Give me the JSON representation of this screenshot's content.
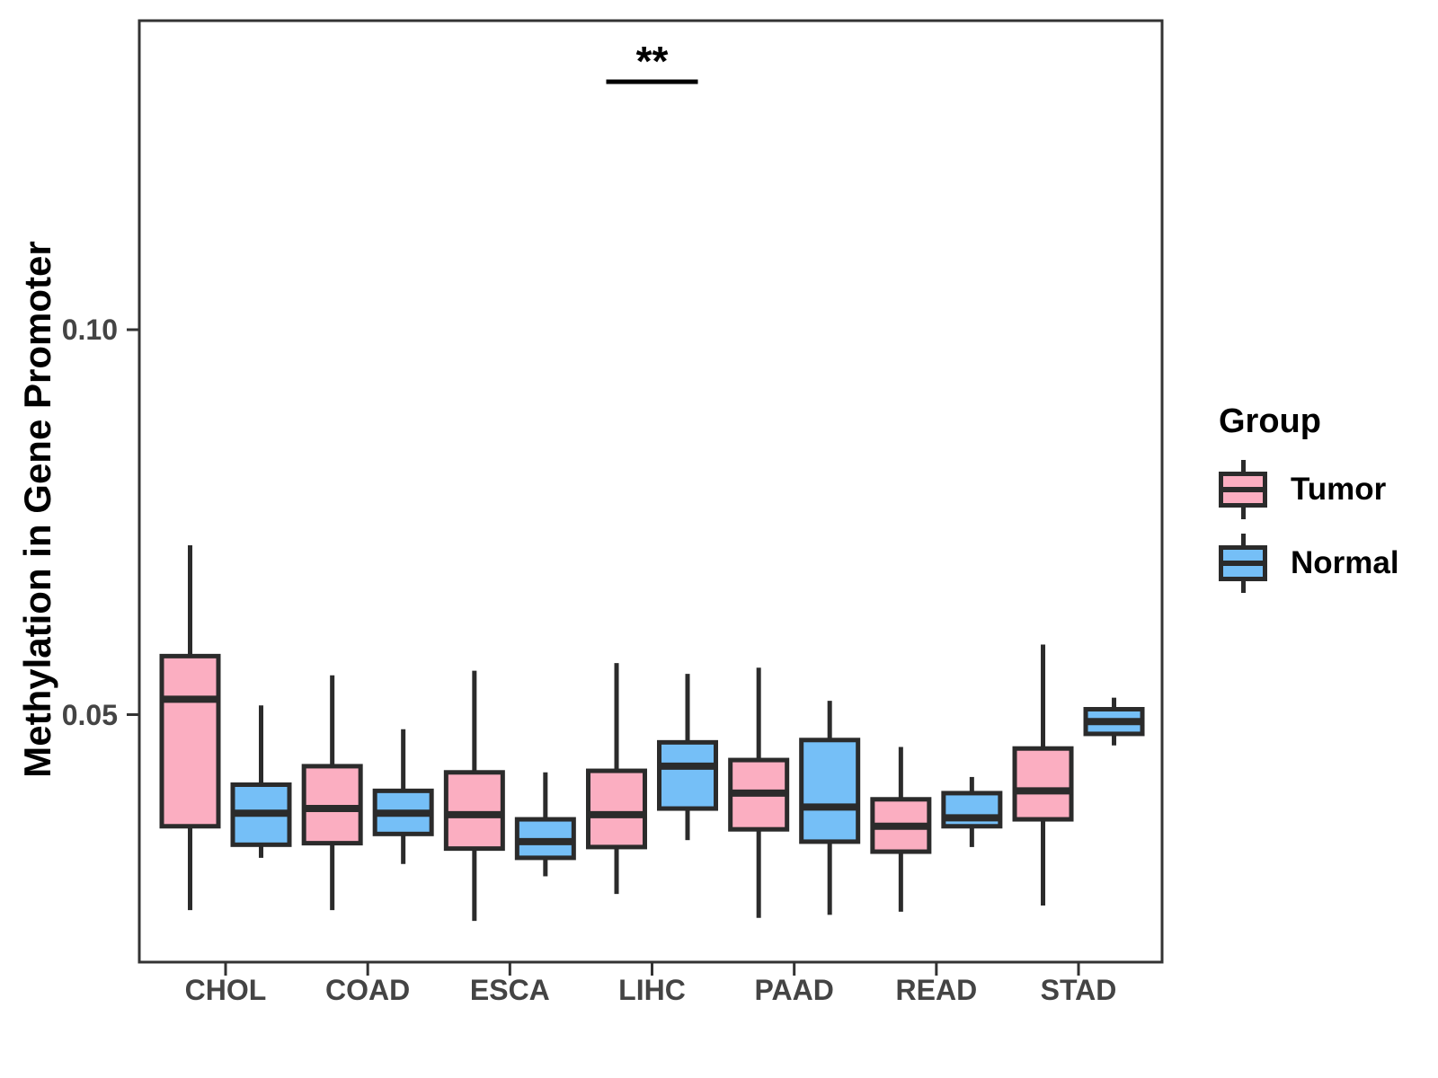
{
  "chart_data": {
    "type": "boxplot",
    "title": "",
    "xlabel": "",
    "ylabel": "Methylation in Gene Promoter",
    "categories": [
      "CHOL",
      "COAD",
      "ESCA",
      "LIHC",
      "PAAD",
      "READ",
      "STAD"
    ],
    "y_ticks": [
      {
        "value": 0.05,
        "label": "0.05"
      },
      {
        "value": 0.1,
        "label": "0.10"
      }
    ],
    "ylim": [
      0.018,
      0.14
    ],
    "grid": "off",
    "legend": {
      "title": "Group",
      "position": "right",
      "entries": [
        {
          "label": "Tumor",
          "color": "#FBAEC1"
        },
        {
          "label": "Normal",
          "color": "#75BFF7"
        }
      ]
    },
    "colors": {
      "tumor_fill": "#FBAEC1",
      "normal_fill": "#75BFF7",
      "box_border": "#2B2B2B",
      "axis": "#333333",
      "tick_label": "#444444",
      "significance": "#000000"
    },
    "series": [
      {
        "name": "Tumor",
        "color": "#FBAEC1",
        "boxes": [
          {
            "category": "CHOL",
            "low": 0.0246,
            "q1": 0.0355,
            "median": 0.052,
            "q3": 0.0576,
            "high": 0.072
          },
          {
            "category": "COAD",
            "low": 0.0246,
            "q1": 0.0333,
            "median": 0.0378,
            "q3": 0.0433,
            "high": 0.0551
          },
          {
            "category": "ESCA",
            "low": 0.0232,
            "q1": 0.0326,
            "median": 0.037,
            "q3": 0.0425,
            "high": 0.0557
          },
          {
            "category": "LIHC",
            "low": 0.0267,
            "q1": 0.0328,
            "median": 0.037,
            "q3": 0.0427,
            "high": 0.0567
          },
          {
            "category": "PAAD",
            "low": 0.0236,
            "q1": 0.0351,
            "median": 0.0398,
            "q3": 0.0441,
            "high": 0.0561
          },
          {
            "category": "READ",
            "low": 0.0244,
            "q1": 0.0322,
            "median": 0.0355,
            "q3": 0.039,
            "high": 0.0458
          },
          {
            "category": "STAD",
            "low": 0.0252,
            "q1": 0.0364,
            "median": 0.0401,
            "q3": 0.0456,
            "high": 0.0591
          }
        ]
      },
      {
        "name": "Normal",
        "color": "#75BFF7",
        "boxes": [
          {
            "category": "CHOL",
            "low": 0.0314,
            "q1": 0.0331,
            "median": 0.0372,
            "q3": 0.0409,
            "high": 0.0512
          },
          {
            "category": "COAD",
            "low": 0.0306,
            "q1": 0.0345,
            "median": 0.0372,
            "q3": 0.0401,
            "high": 0.0481
          },
          {
            "category": "ESCA",
            "low": 0.029,
            "q1": 0.0314,
            "median": 0.0335,
            "q3": 0.0364,
            "high": 0.0425
          },
          {
            "category": "LIHC",
            "low": 0.0337,
            "q1": 0.0378,
            "median": 0.0433,
            "q3": 0.0464,
            "high": 0.0553
          },
          {
            "category": "PAAD",
            "low": 0.024,
            "q1": 0.0335,
            "median": 0.038,
            "q3": 0.0467,
            "high": 0.0518
          },
          {
            "category": "READ",
            "low": 0.0328,
            "q1": 0.0355,
            "median": 0.0366,
            "q3": 0.0398,
            "high": 0.0419
          },
          {
            "category": "STAD",
            "low": 0.046,
            "q1": 0.0475,
            "median": 0.0491,
            "q3": 0.0507,
            "high": 0.0522
          }
        ]
      }
    ],
    "significance": [
      {
        "category": "LIHC",
        "label": "**",
        "between": [
          "Tumor",
          "Normal"
        ]
      }
    ]
  }
}
